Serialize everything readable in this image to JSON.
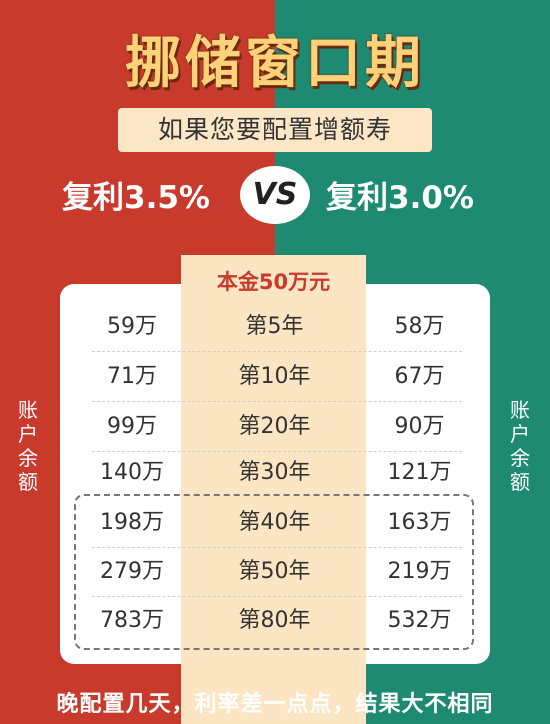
{
  "title": "挪储窗口期",
  "subtitle": "如果您要配置增额寿",
  "rate_left": "复利3.5%",
  "vs": "VS",
  "rate_right": "复利3.0%",
  "principal": "本金50万元",
  "side_label": "账户余额",
  "rows": [
    {
      "left": "59万",
      "year": "第5年",
      "right": "58万"
    },
    {
      "left": "71万",
      "year": "第10年",
      "right": "67万"
    },
    {
      "left": "99万",
      "year": "第20年",
      "right": "90万"
    },
    {
      "left": "140万",
      "year": "第30年",
      "right": "121万"
    },
    {
      "left": "198万",
      "year": "第40年",
      "right": "163万"
    },
    {
      "left": "279万",
      "year": "第50年",
      "right": "219万"
    },
    {
      "left": "783万",
      "year": "第80年",
      "right": "532万"
    }
  ],
  "footer": "晚配置几天，利率差一点点，结果大不相同",
  "colors": {
    "left_bg": "#c83b2c",
    "right_bg": "#1e8a72",
    "title": "#ffd27a"
  }
}
